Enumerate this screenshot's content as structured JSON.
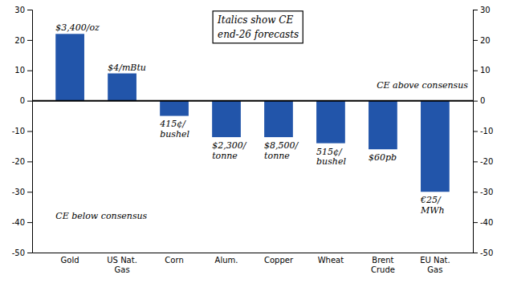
{
  "chart_data": {
    "type": "bar",
    "categories": [
      "Gold",
      "US Nat.\nGas",
      "Corn",
      "Alum.",
      "Copper",
      "Wheat",
      "Brent\nCrude",
      "EU Nat.\nGas"
    ],
    "values": [
      22,
      9,
      -5,
      -12,
      -12,
      -14,
      -16,
      -30
    ],
    "color": "#2255AA",
    "ylim": [
      -50,
      30
    ],
    "yticks": [
      -50,
      -40,
      -30,
      -20,
      -10,
      0,
      10,
      20,
      30
    ],
    "y2lim": [
      -50,
      30
    ],
    "y2ticks": [
      -50,
      -40,
      -30,
      -20,
      -10,
      0,
      10,
      20,
      30
    ],
    "grid": false,
    "annotations": [
      {
        "text": "$3,400/oz",
        "category": "Gold"
      },
      {
        "text": "$4/mBtu",
        "category": "US Nat.\nGas"
      },
      {
        "text": "415¢/\nbushel",
        "category": "Corn"
      },
      {
        "text": "$2,300/\ntonne",
        "category": "Alum."
      },
      {
        "text": "$8,500/\ntonne",
        "category": "Copper"
      },
      {
        "text": "515¢/\nbushel",
        "category": "Wheat"
      },
      {
        "text": "$60pb",
        "category": "Brent\nCrude"
      },
      {
        "text": "€25/\nMWh",
        "category": "EU Nat.\nGas"
      },
      {
        "text": "CE above consensus",
        "y": 5
      },
      {
        "text": "CE below consensus",
        "y": -38
      },
      {
        "text": "Italics show CE\nend-26 forecasts"
      }
    ]
  }
}
